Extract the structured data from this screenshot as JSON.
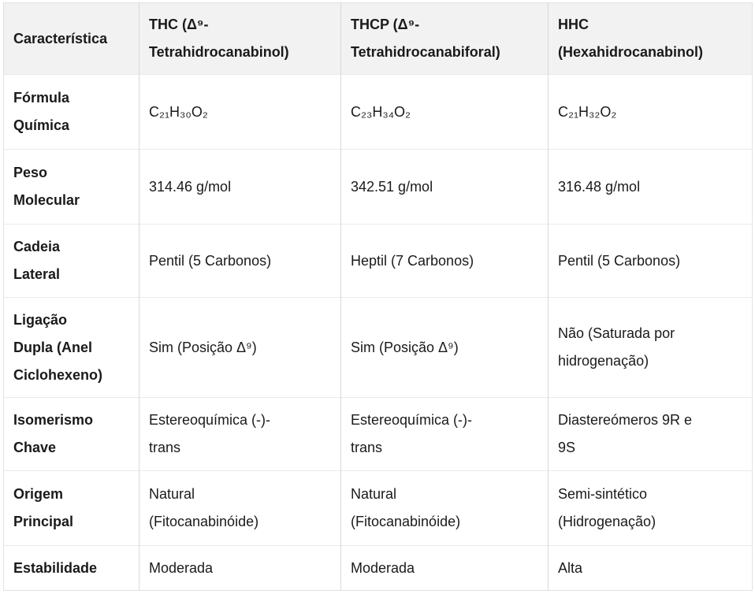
{
  "table": {
    "columns": [
      "Característica",
      "THC (Δ⁹-\nTetrahidrocanabinol)",
      "THCP (Δ⁹-\nTetrahidrocanabiforal)",
      "HHC\n(Hexahidrocanabinol)"
    ],
    "rows": [
      {
        "feature": "Fórmula\nQuímica",
        "values": [
          "C₂₁H₃₀O₂",
          "C₂₃H₃₄O₂",
          "C₂₁H₃₂O₂"
        ]
      },
      {
        "feature": "Peso\nMolecular",
        "values": [
          "314.46 g/mol",
          "342.51 g/mol",
          "316.48 g/mol"
        ]
      },
      {
        "feature": "Cadeia\nLateral",
        "values": [
          "Pentil (5 Carbonos)",
          "Heptil (7 Carbonos)",
          "Pentil (5 Carbonos)"
        ]
      },
      {
        "feature": "Ligação\nDupla (Anel\nCiclohexeno)",
        "values": [
          "Sim (Posição Δ⁹)",
          "Sim (Posição Δ⁹)",
          "Não (Saturada por\nhidrogenação)"
        ]
      },
      {
        "feature": "Isomerismo\nChave",
        "values": [
          "Estereoquímica (-)-\ntrans",
          "Estereoquímica (-)-\ntrans",
          "Diastereómeros 9R e\n9S"
        ]
      },
      {
        "feature": "Origem\nPrincipal",
        "values": [
          "Natural\n(Fitocanabinóide)",
          "Natural\n(Fitocanabinóide)",
          "Semi-sintético\n(Hidrogenação)"
        ]
      },
      {
        "feature": "Estabilidade",
        "values": [
          "Moderada",
          "Moderada",
          "Alta"
        ]
      }
    ]
  },
  "colors": {
    "background": "#ffffff",
    "header_bg": "#f2f2f2",
    "text": "#1a1a1a",
    "border_vertical": "#d9d9d9",
    "border_horizontal": "#eaeaea",
    "border_outer": "#e2e2e2"
  }
}
